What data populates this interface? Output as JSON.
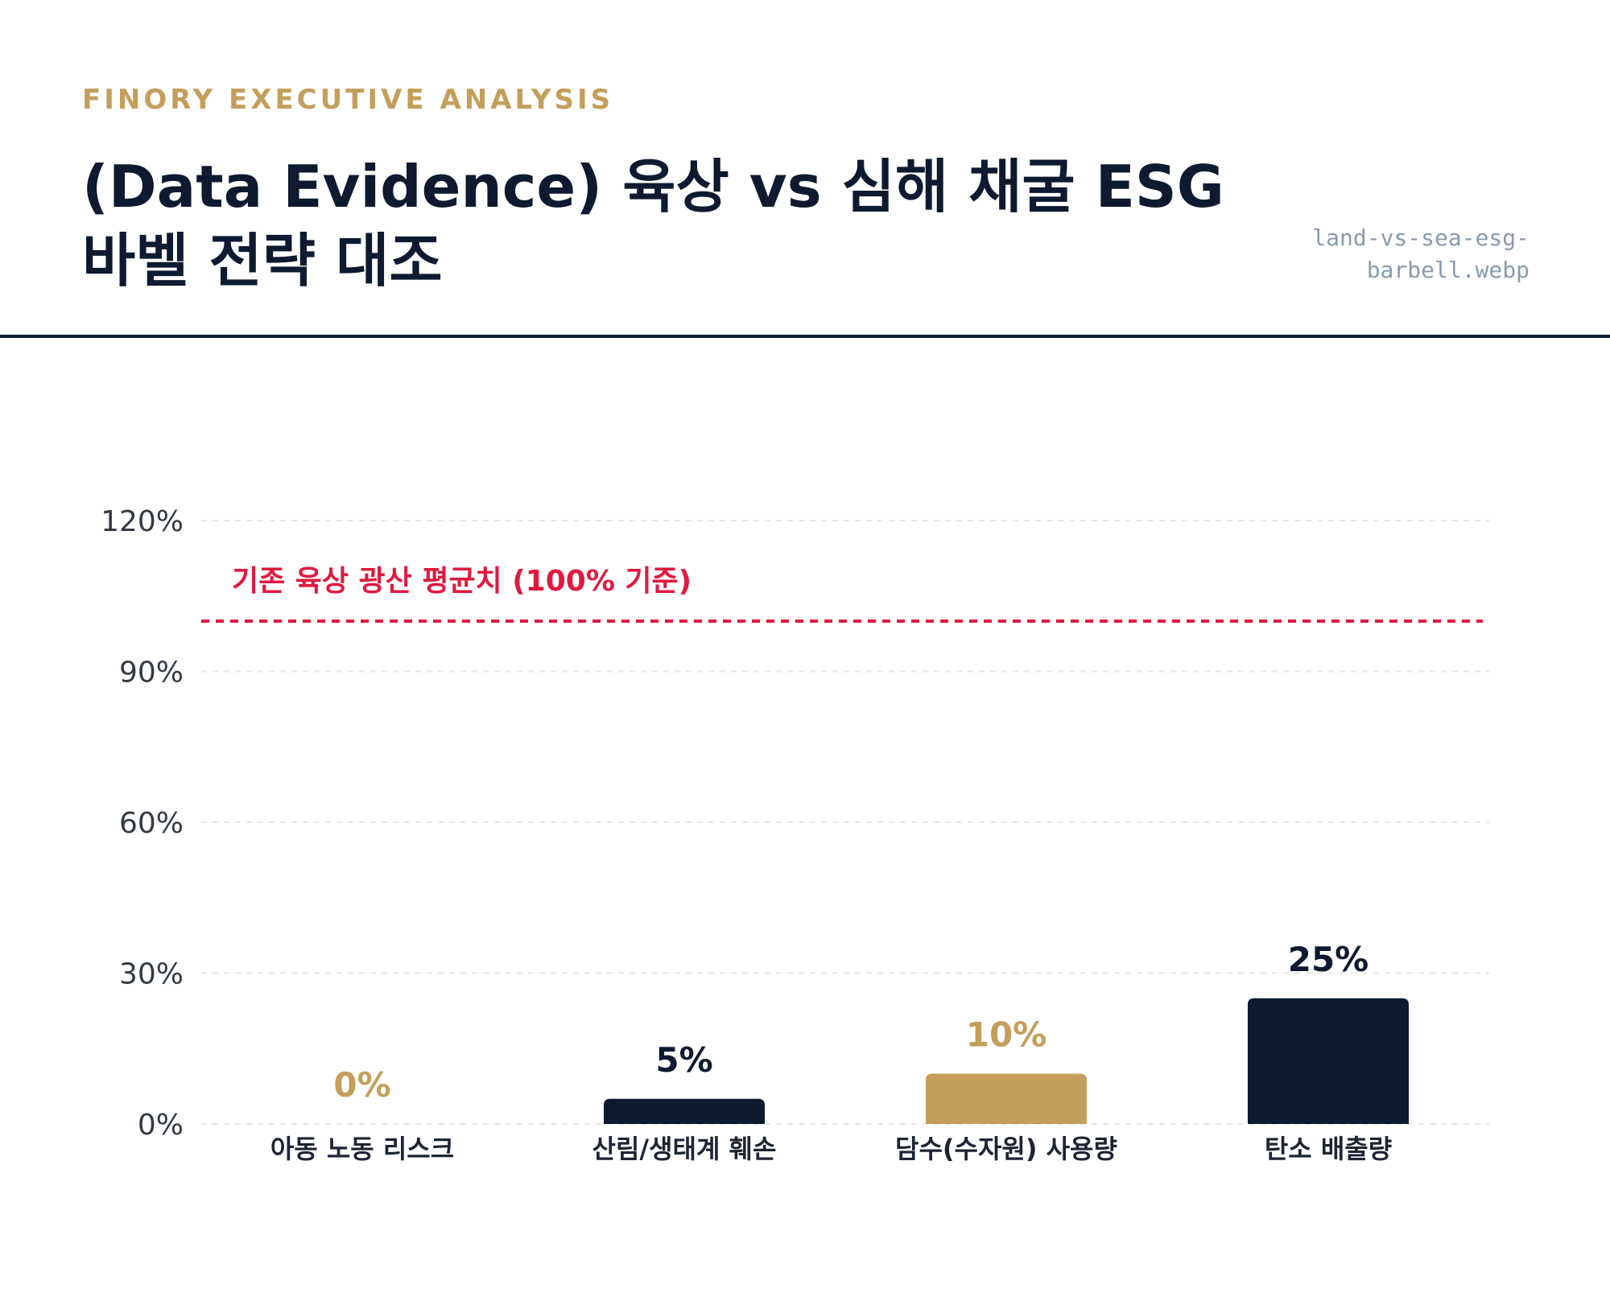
{
  "header": {
    "eyebrow": "FINORY EXECUTIVE ANALYSIS",
    "title": "(Data Evidence) 육상 vs 심해 채굴 ESG 바벨 전략 대조",
    "filename": "land-vs-sea-esg-barbell.webp"
  },
  "chart_data": {
    "type": "bar",
    "categories": [
      "아동 노동 리스크",
      "산림/생태계 훼손",
      "담수(수자원) 사용량",
      "탄소 배출량"
    ],
    "values": [
      0,
      5,
      10,
      25
    ],
    "value_labels": [
      "0%",
      "5%",
      "10%",
      "25%"
    ],
    "bar_colors": [
      "#c49f5b",
      "#0d1a30",
      "#c49f5b",
      "#0d1a30"
    ],
    "ylim": [
      0,
      120
    ],
    "yticks": [
      0,
      30,
      60,
      90,
      120
    ],
    "ytick_labels": [
      "0%",
      "30%",
      "60%",
      "90%",
      "120%"
    ],
    "grid": true,
    "reference_line": {
      "value": 100,
      "label": "기존 육상 광산 평균치 (100% 기준)",
      "color": "#e0193f"
    }
  },
  "colors": {
    "navy": "#0d1a30",
    "gold": "#c49f5b",
    "red": "#e0193f",
    "grid": "#e6e6e6"
  }
}
